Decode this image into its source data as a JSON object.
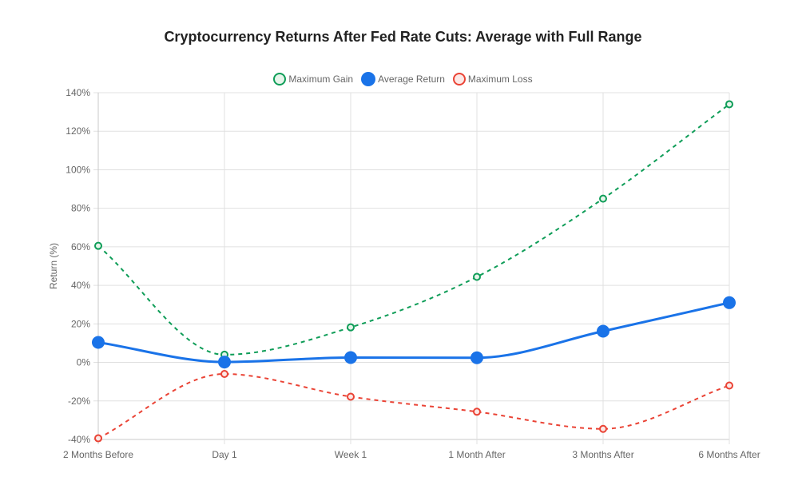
{
  "chart_data": {
    "type": "line",
    "title": "Cryptocurrency Returns After Fed Rate Cuts: Average with Full Range",
    "xlabel": "",
    "ylabel": "Return (%)",
    "ylim": [
      -40,
      140
    ],
    "yticks": [
      140,
      120,
      100,
      80,
      60,
      40,
      20,
      0,
      -20,
      -40
    ],
    "ytick_labels": [
      "140%",
      "120%",
      "100%",
      "80%",
      "60%",
      "40%",
      "20%",
      "0%",
      "-20%",
      "-40%"
    ],
    "categories": [
      "2 Months Before",
      "Day 1",
      "Week 1",
      "1 Month After",
      "3 Months After",
      "6 Months After"
    ],
    "grid": true,
    "legend_position": "top-center",
    "series": [
      {
        "name": "Maximum Gain",
        "color": "#0f9d58",
        "fill": "#e6f4ea",
        "style": "dashed",
        "values": [
          60.5,
          4,
          18.2,
          44.4,
          85,
          134
        ]
      },
      {
        "name": "Average Return",
        "color": "#1a73e8",
        "fill": "#1a73e8",
        "style": "solid",
        "values": [
          10.4,
          0.2,
          2.5,
          2.4,
          16.2,
          31
        ]
      },
      {
        "name": "Maximum Loss",
        "color": "#ea4335",
        "fill": "#fce8e6",
        "style": "dashed",
        "values": [
          -39.4,
          -6,
          -17.8,
          -25.6,
          -34.5,
          -12
        ]
      }
    ]
  }
}
